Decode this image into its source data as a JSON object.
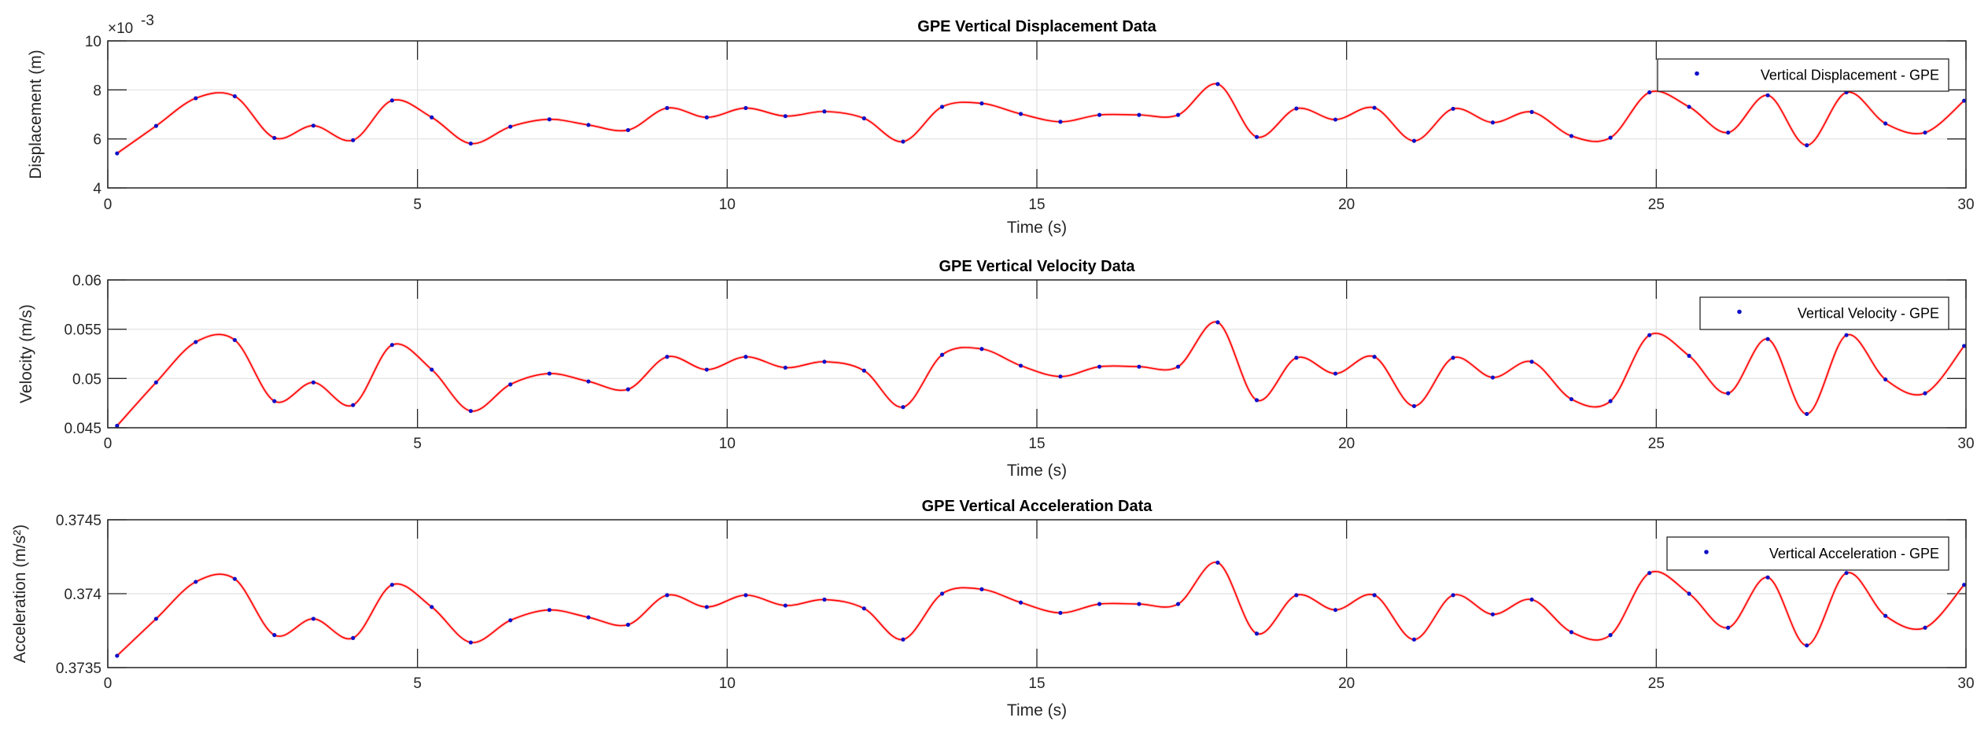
{
  "chart_data": [
    {
      "type": "line",
      "title": "GPE Vertical Displacement Data",
      "xlabel": "Time (s)",
      "ylabel": "Displacement (m)",
      "y_exponent_label": "×10",
      "y_exponent_power": "-3",
      "xlim": [
        0,
        30
      ],
      "ylim": [
        4,
        10
      ],
      "y_scale_factor": 0.001,
      "xticks": [
        0,
        5,
        10,
        15,
        20,
        25,
        30
      ],
      "yticks": [
        4,
        6,
        8,
        10
      ],
      "ytick_labels": [
        "4",
        "6",
        "8",
        "10"
      ],
      "grid": true,
      "legend": {
        "placement": "top-right",
        "entries": [
          "Vertical Displacement - GPE"
        ]
      },
      "series": [
        {
          "name": "Vertical Displacement - GPE",
          "marker_color": "#1010c8",
          "line_color": "#ff0000",
          "x": [
            0.15,
            0.78,
            1.42,
            2.05,
            2.69,
            3.32,
            3.96,
            4.59,
            5.23,
            5.86,
            6.5,
            7.13,
            7.76,
            8.4,
            9.03,
            9.67,
            10.3,
            10.94,
            11.57,
            12.21,
            12.84,
            13.47,
            14.11,
            14.74,
            15.38,
            16.01,
            16.65,
            17.28,
            17.92,
            18.55,
            19.19,
            19.82,
            20.45,
            21.09,
            21.72,
            22.36,
            22.99,
            23.63,
            24.26,
            24.89,
            25.53,
            26.16,
            26.8,
            27.43,
            28.07,
            28.7,
            29.34,
            29.97
          ],
          "y": [
            5.41,
            6.53,
            7.66,
            7.74,
            6.04,
            6.54,
            5.95,
            7.57,
            6.88,
            5.81,
            6.5,
            6.8,
            6.57,
            6.36,
            7.26,
            6.88,
            7.26,
            6.93,
            7.12,
            6.84,
            5.89,
            7.31,
            7.45,
            7.02,
            6.7,
            6.98,
            6.98,
            6.98,
            8.24,
            6.08,
            7.24,
            6.79,
            7.27,
            5.92,
            7.23,
            6.67,
            7.1,
            6.12,
            6.05,
            7.9,
            7.31,
            6.26,
            7.78,
            5.74,
            7.9,
            6.63,
            6.26,
            7.56
          ]
        }
      ]
    },
    {
      "type": "line",
      "title": "GPE Vertical Velocity Data",
      "xlabel": "Time (s)",
      "ylabel": "Velocity (m/s)",
      "xlim": [
        0,
        30
      ],
      "ylim": [
        0.045,
        0.06
      ],
      "xticks": [
        0,
        5,
        10,
        15,
        20,
        25,
        30
      ],
      "yticks": [
        0.045,
        0.05,
        0.055,
        0.06
      ],
      "ytick_labels": [
        "0.045",
        "0.05",
        "0.055",
        "0.06"
      ],
      "grid": true,
      "legend": {
        "placement": "top-right",
        "entries": [
          "Vertical Velocity - GPE"
        ]
      },
      "series": [
        {
          "name": "Vertical Velocity - GPE",
          "marker_color": "#1010c8",
          "line_color": "#ff0000",
          "x": [
            0.15,
            0.78,
            1.42,
            2.05,
            2.69,
            3.32,
            3.96,
            4.59,
            5.23,
            5.86,
            6.5,
            7.13,
            7.76,
            8.4,
            9.03,
            9.67,
            10.3,
            10.94,
            11.57,
            12.21,
            12.84,
            13.47,
            14.11,
            14.74,
            15.38,
            16.01,
            16.65,
            17.28,
            17.92,
            18.55,
            19.19,
            19.82,
            20.45,
            21.09,
            21.72,
            22.36,
            22.99,
            23.63,
            24.26,
            24.89,
            25.53,
            26.16,
            26.8,
            27.43,
            28.07,
            28.7,
            29.34,
            29.97
          ],
          "y": [
            0.0452,
            0.0496,
            0.0537,
            0.0539,
            0.0477,
            0.0496,
            0.0473,
            0.0534,
            0.0509,
            0.0467,
            0.0494,
            0.0505,
            0.0497,
            0.0489,
            0.0522,
            0.0509,
            0.0522,
            0.0511,
            0.0517,
            0.0508,
            0.0471,
            0.0524,
            0.053,
            0.0513,
            0.0502,
            0.0512,
            0.0512,
            0.0512,
            0.0557,
            0.0478,
            0.0521,
            0.0505,
            0.0522,
            0.0472,
            0.0521,
            0.0501,
            0.0517,
            0.0479,
            0.0477,
            0.0544,
            0.0523,
            0.0485,
            0.054,
            0.0464,
            0.0544,
            0.0499,
            0.0485,
            0.0533
          ]
        }
      ]
    },
    {
      "type": "line",
      "title": "GPE Vertical Acceleration Data",
      "xlabel": "Time (s)",
      "ylabel": "Acceleration (m/s²)",
      "xlim": [
        0,
        30
      ],
      "ylim": [
        0.3735,
        0.3745
      ],
      "xticks": [
        0,
        5,
        10,
        15,
        20,
        25,
        30
      ],
      "yticks": [
        0.3735,
        0.374,
        0.3745
      ],
      "ytick_labels": [
        "0.3735",
        "0.374",
        "0.3745"
      ],
      "grid": true,
      "legend": {
        "placement": "top-right",
        "entries": [
          "Vertical Acceleration - GPE"
        ]
      },
      "series": [
        {
          "name": "Vertical Acceleration - GPE",
          "marker_color": "#1010c8",
          "line_color": "#ff0000",
          "x": [
            0.15,
            0.78,
            1.42,
            2.05,
            2.69,
            3.32,
            3.96,
            4.59,
            5.23,
            5.86,
            6.5,
            7.13,
            7.76,
            8.4,
            9.03,
            9.67,
            10.3,
            10.94,
            11.57,
            12.21,
            12.84,
            13.47,
            14.11,
            14.74,
            15.38,
            16.01,
            16.65,
            17.28,
            17.92,
            18.55,
            19.19,
            19.82,
            20.45,
            21.09,
            21.72,
            22.36,
            22.99,
            23.63,
            24.26,
            24.89,
            25.53,
            26.16,
            26.8,
            27.43,
            28.07,
            28.7,
            29.34,
            29.97
          ],
          "y": [
            0.37358,
            0.37383,
            0.37408,
            0.3741,
            0.37372,
            0.37383,
            0.3737,
            0.37406,
            0.37391,
            0.37367,
            0.37382,
            0.37389,
            0.37384,
            0.37379,
            0.37399,
            0.37391,
            0.37399,
            0.37392,
            0.37396,
            0.3739,
            0.37369,
            0.374,
            0.37403,
            0.37394,
            0.37387,
            0.37393,
            0.37393,
            0.37393,
            0.37421,
            0.37373,
            0.37399,
            0.37389,
            0.37399,
            0.37369,
            0.37399,
            0.37386,
            0.37396,
            0.37374,
            0.37372,
            0.37414,
            0.374,
            0.37377,
            0.37411,
            0.37365,
            0.37414,
            0.37385,
            0.37377,
            0.37406
          ]
        }
      ]
    }
  ]
}
